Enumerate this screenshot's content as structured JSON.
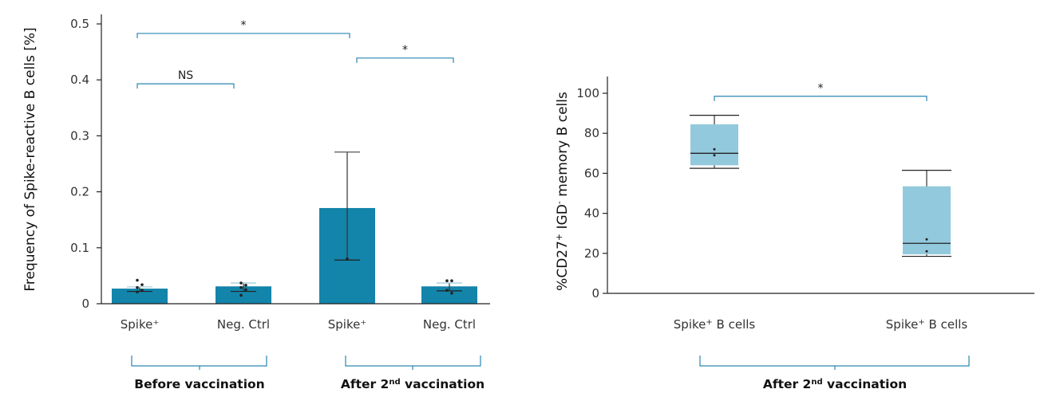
{
  "colors": {
    "bar": "#1384aa",
    "box": "#93c9dd",
    "bracket": "#2a86b3",
    "axis": "#222222",
    "point": "#222222"
  },
  "chart_data": [
    {
      "type": "bar",
      "ylabel": "Frequency of Spike-reactive B cells [%]",
      "ylim": [
        0,
        0.5
      ],
      "yticks": [
        "0",
        "0.1",
        "0.2",
        "0.3",
        "0.4",
        "0.5"
      ],
      "categories": [
        "Spike⁺",
        "Neg. Ctrl",
        "Spike⁺",
        "Neg. Ctrl"
      ],
      "values": [
        0.027,
        0.031,
        0.171,
        0.031
      ],
      "error_upper": [
        0.03,
        0.037,
        0.271,
        0.037
      ],
      "error_lower": [
        0.022,
        0.022,
        0.078,
        0.023
      ],
      "points": [
        [
          0.042,
          0.034,
          0.029,
          0.024,
          0.021
        ],
        [
          0.037,
          0.033,
          0.029,
          0.025,
          0.015
        ],
        [
          0.08
        ],
        [
          0.041,
          0.041,
          0.024,
          0.019
        ]
      ],
      "groups": [
        {
          "label": "Before vaccination"
        },
        {
          "label": "After 2",
          "sup": "nd",
          "rest": " vaccination"
        }
      ],
      "significance": [
        {
          "from": 0,
          "to": 1,
          "label": "NS",
          "y": 0.393
        },
        {
          "from": 0,
          "to": 2,
          "label": "*",
          "y": 0.483
        },
        {
          "from": 2,
          "to": 3,
          "label": "*",
          "y": 0.439
        }
      ]
    },
    {
      "type": "box",
      "ylabel_parts": [
        "%CD27",
        "+",
        " IGD",
        "-",
        " memory B cells"
      ],
      "ylim": [
        0,
        107
      ],
      "yticks": [
        "0",
        "20",
        "40",
        "60",
        "80",
        "100"
      ],
      "categories": [
        {
          "a": "Spike",
          "sup": "+",
          "b": " B cells"
        },
        {
          "a": "Spike",
          "sup": "+",
          "b": " B cells"
        }
      ],
      "boxes": [
        {
          "whisker_low": 62.5,
          "q1": 64,
          "median": 70,
          "q3": 84.5,
          "whisker_high": 89,
          "points": [
            72,
            69
          ]
        },
        {
          "whisker_low": 18.5,
          "q1": 19.5,
          "median": 25,
          "q3": 53.5,
          "whisker_high": 61.5,
          "points": [
            27,
            21
          ]
        }
      ],
      "group": {
        "label": "After 2",
        "sup": "nd",
        "rest": " vaccination"
      },
      "significance": [
        {
          "from": 0,
          "to": 1,
          "label": "*",
          "y": 98.5
        }
      ]
    }
  ]
}
